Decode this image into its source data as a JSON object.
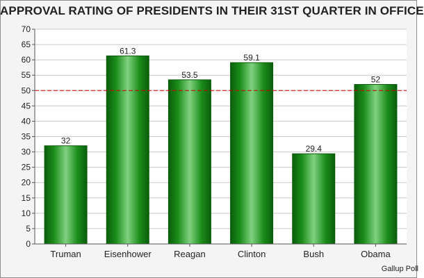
{
  "chart_data": {
    "type": "bar",
    "title": "APPROVAL RATING OF PRESIDENTS IN THEIR 31ST QUARTER IN OFFICE",
    "categories": [
      "Truman",
      "Eisenhower",
      "Reagan",
      "Clinton",
      "Bush",
      "Obama"
    ],
    "values": [
      32,
      61.3,
      53.5,
      59.1,
      29.4,
      52
    ],
    "value_labels": [
      "32",
      "61.3",
      "53.5",
      "59.1",
      "29.4",
      "52"
    ],
    "ylim": [
      0,
      70
    ],
    "yticks": [
      "0",
      "5",
      "10",
      "15",
      "20",
      "25",
      "30",
      "35",
      "40",
      "45",
      "50",
      "55",
      "60",
      "65",
      "70"
    ],
    "reference_line": {
      "value": 50,
      "color": "#cc0000",
      "style": "dashed"
    },
    "grid": true,
    "bar_color": "#1e8f1e",
    "source": "Gallup Poll"
  }
}
